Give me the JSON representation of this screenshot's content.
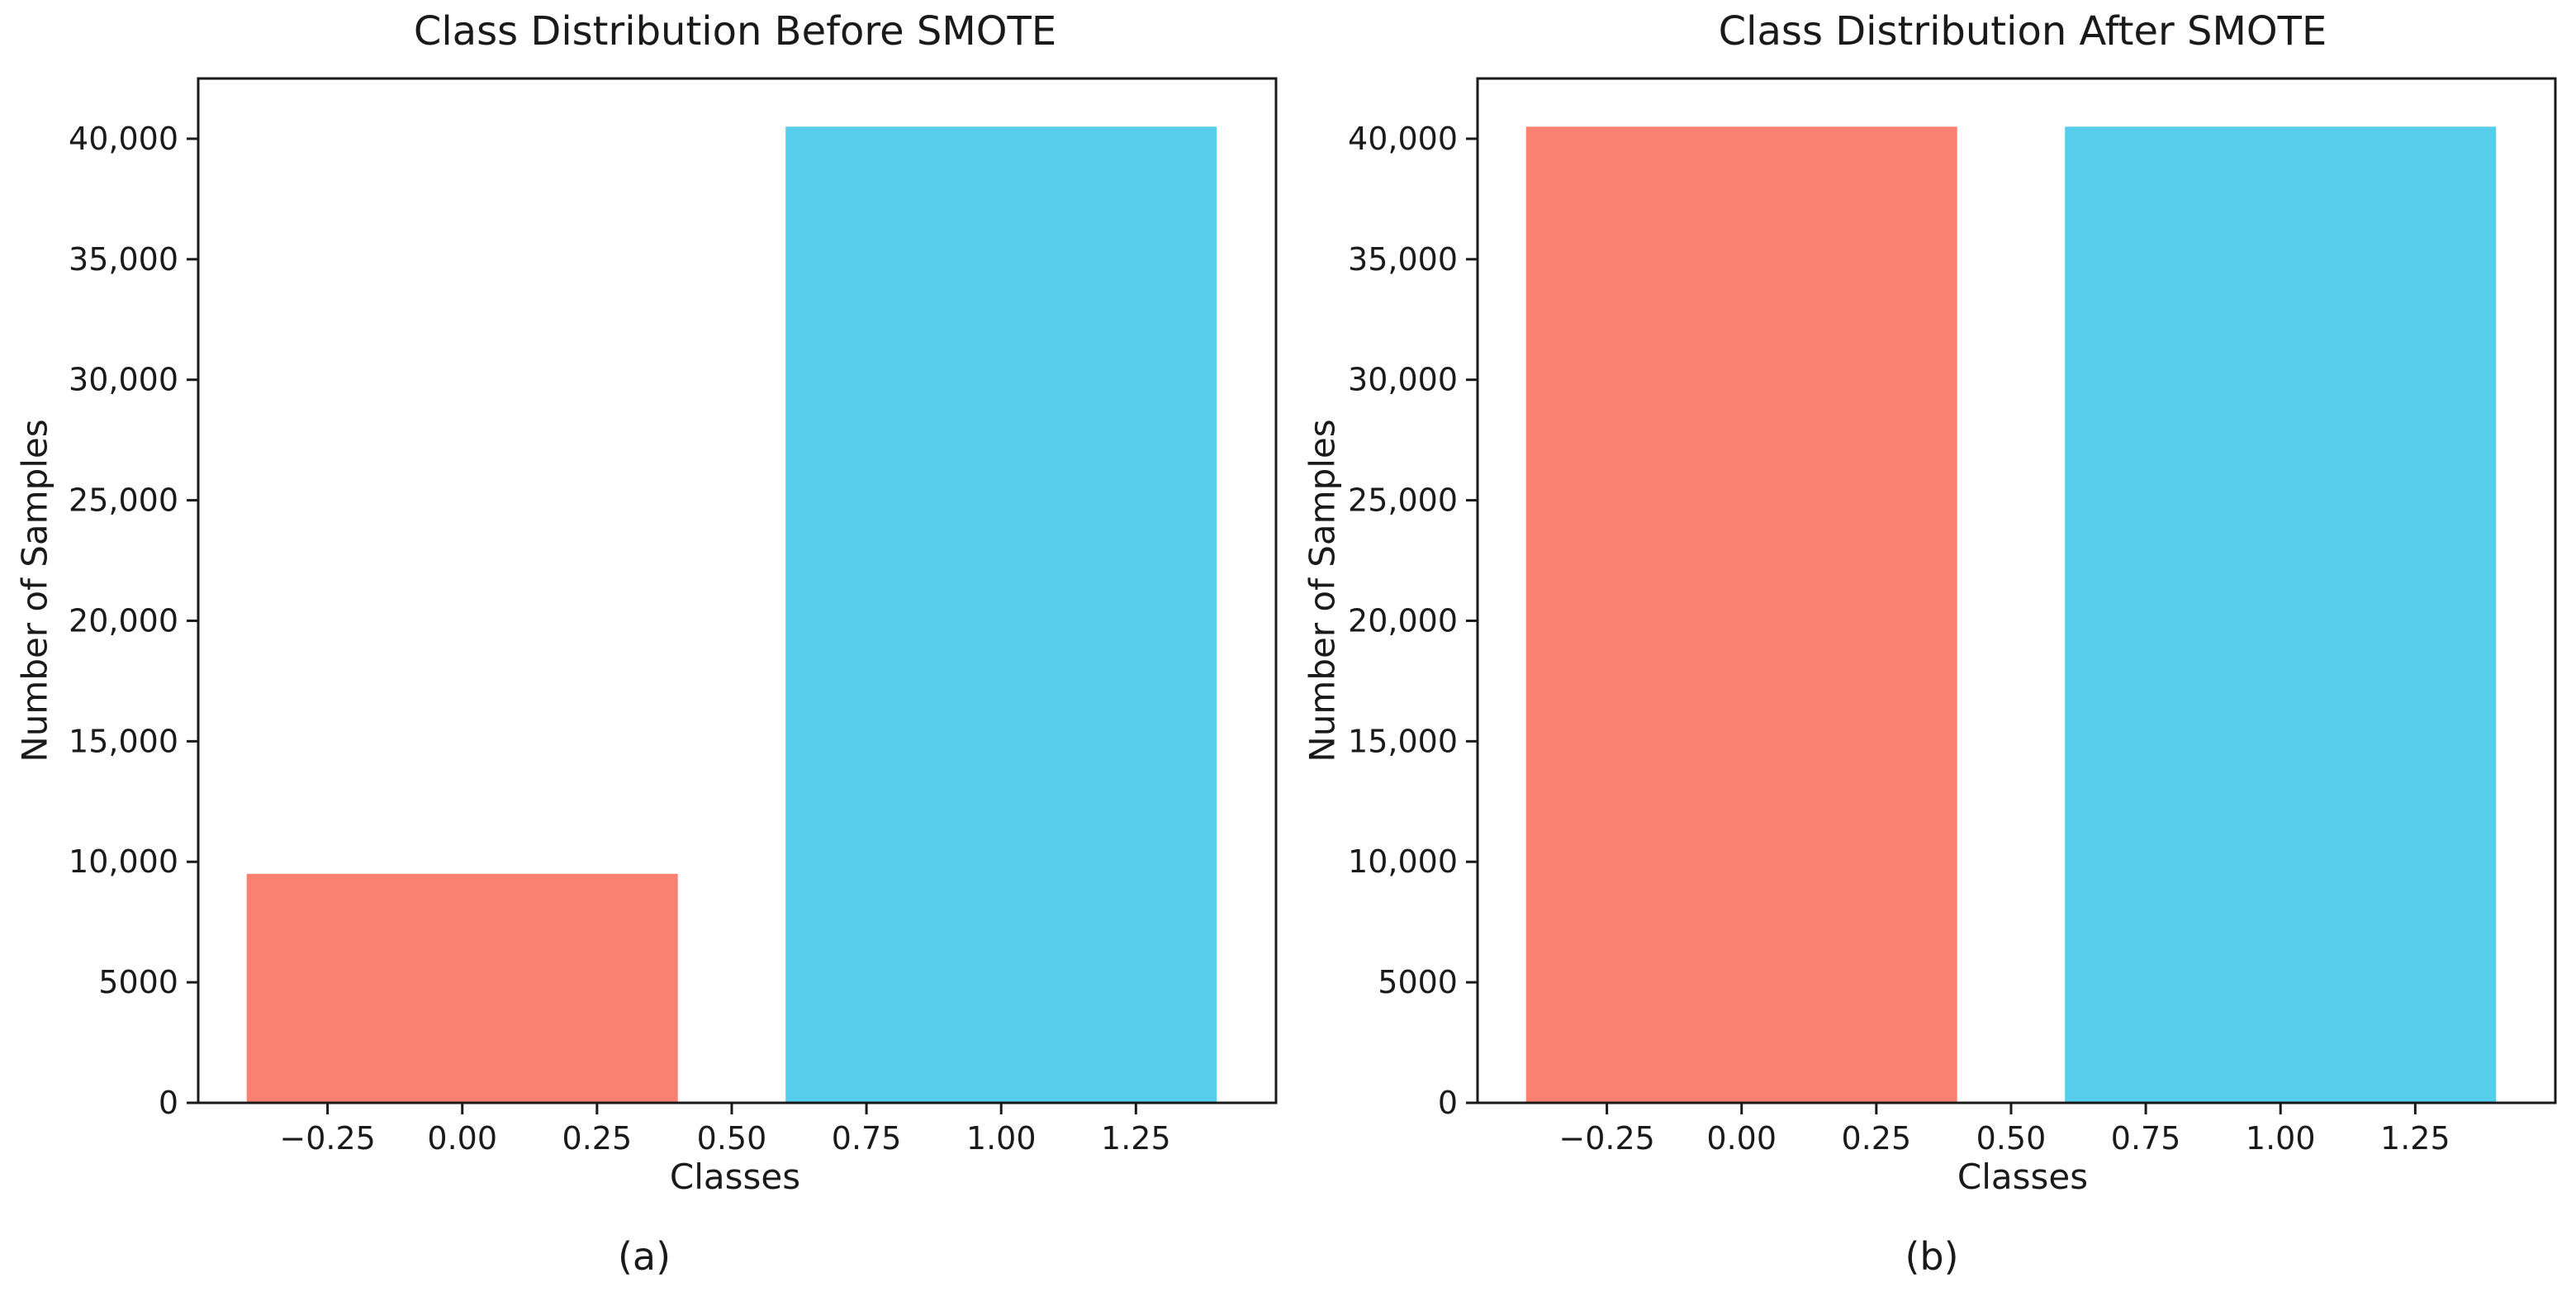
{
  "figure": {
    "background": "#ffffff",
    "text_color": "#1a1a1a",
    "spine_color": "#1a1a1a"
  },
  "chart_data": [
    {
      "type": "bar",
      "title": "Class Distribution Before SMOTE",
      "caption": "(a)",
      "xlabel": "Classes",
      "ylabel": "Number of Samples",
      "categories": [
        0,
        1
      ],
      "values": [
        9500,
        40500
      ],
      "bar_colors": [
        "#fa8072",
        "#55cdeb"
      ],
      "bar_width": 0.8,
      "xlim": [
        -0.49,
        1.51
      ],
      "ylim": [
        0,
        42500
      ],
      "x_ticks": [
        {
          "v": -0.25,
          "label": "−0.25"
        },
        {
          "v": 0.0,
          "label": "0.00"
        },
        {
          "v": 0.25,
          "label": "0.25"
        },
        {
          "v": 0.5,
          "label": "0.50"
        },
        {
          "v": 0.75,
          "label": "0.75"
        },
        {
          "v": 1.0,
          "label": "1.00"
        },
        {
          "v": 1.25,
          "label": "1.25"
        }
      ],
      "y_ticks": [
        {
          "v": 0,
          "label": "0"
        },
        {
          "v": 5000,
          "label": "5000"
        },
        {
          "v": 10000,
          "label": "10,000"
        },
        {
          "v": 15000,
          "label": "15,000"
        },
        {
          "v": 20000,
          "label": "20,000"
        },
        {
          "v": 25000,
          "label": "25,000"
        },
        {
          "v": 30000,
          "label": "30,000"
        },
        {
          "v": 35000,
          "label": "35,000"
        },
        {
          "v": 40000,
          "label": "40,000"
        }
      ],
      "grid": false,
      "legend": null
    },
    {
      "type": "bar",
      "title": "Class Distribution After SMOTE",
      "caption": "(b)",
      "xlabel": "Classes",
      "ylabel": "Number of Samples",
      "categories": [
        0,
        1
      ],
      "values": [
        40500,
        40500
      ],
      "bar_colors": [
        "#fa8072",
        "#55cdeb"
      ],
      "bar_width": 0.8,
      "xlim": [
        -0.49,
        1.51
      ],
      "ylim": [
        0,
        42500
      ],
      "x_ticks": [
        {
          "v": -0.25,
          "label": "−0.25"
        },
        {
          "v": 0.0,
          "label": "0.00"
        },
        {
          "v": 0.25,
          "label": "0.25"
        },
        {
          "v": 0.5,
          "label": "0.50"
        },
        {
          "v": 0.75,
          "label": "0.75"
        },
        {
          "v": 1.0,
          "label": "1.00"
        },
        {
          "v": 1.25,
          "label": "1.25"
        }
      ],
      "y_ticks": [
        {
          "v": 0,
          "label": "0"
        },
        {
          "v": 5000,
          "label": "5000"
        },
        {
          "v": 10000,
          "label": "10,000"
        },
        {
          "v": 15000,
          "label": "15,000"
        },
        {
          "v": 20000,
          "label": "20,000"
        },
        {
          "v": 25000,
          "label": "25,000"
        },
        {
          "v": 30000,
          "label": "30,000"
        },
        {
          "v": 35000,
          "label": "35,000"
        },
        {
          "v": 40000,
          "label": "40,000"
        }
      ],
      "grid": false,
      "legend": null
    }
  ]
}
